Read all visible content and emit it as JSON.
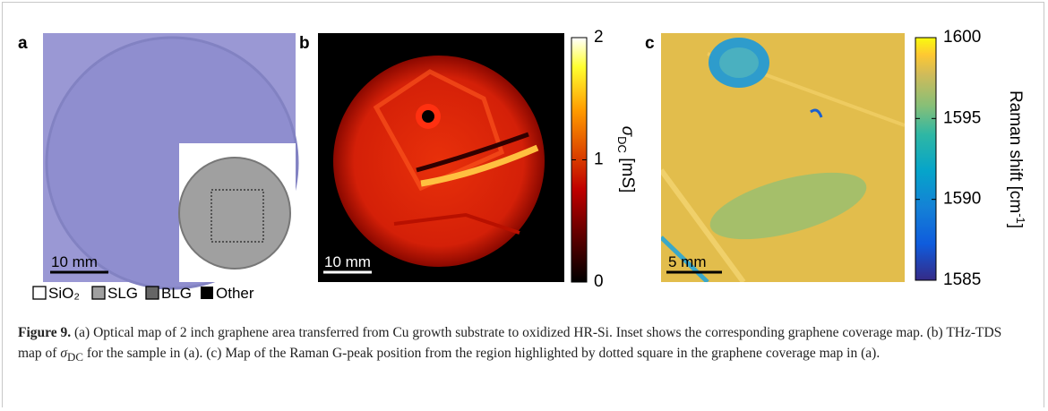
{
  "figure": {
    "panels": {
      "a": {
        "label": "a",
        "scale_bar": "10 mm",
        "legend": [
          "SiO₂",
          "SLG",
          "BLG",
          "Other"
        ]
      },
      "b": {
        "label": "b",
        "scale_bar": "10 mm",
        "colorbar": {
          "lim": [
            0,
            2
          ],
          "ticks": [
            0,
            1,
            2
          ],
          "label_symbol": "σ",
          "label_sub": "DC",
          "label_unit": " [mS]"
        }
      },
      "c": {
        "label": "c",
        "scale_bar": "5 mm",
        "colorbar": {
          "lim": [
            1585,
            1600
          ],
          "ticks": [
            1585,
            1590,
            1595,
            1600
          ],
          "label_text": "Raman shift [cm",
          "label_sup": "-1",
          "label_end": "]"
        }
      }
    },
    "caption": {
      "label": "Figure 9.",
      "text_before": " (a) Optical map of 2 inch graphene area transferred from Cu growth substrate to oxidized HR-Si. Inset shows the corresponding graphene coverage map. (b) THz-TDS map of ",
      "symbol": "σ",
      "symbol_sub": "DC",
      "text_after": " for the sample in (a). (c) Map of the Raman G-peak position from the region highlighted by dotted square in the graphene coverage map in (a)."
    }
  }
}
